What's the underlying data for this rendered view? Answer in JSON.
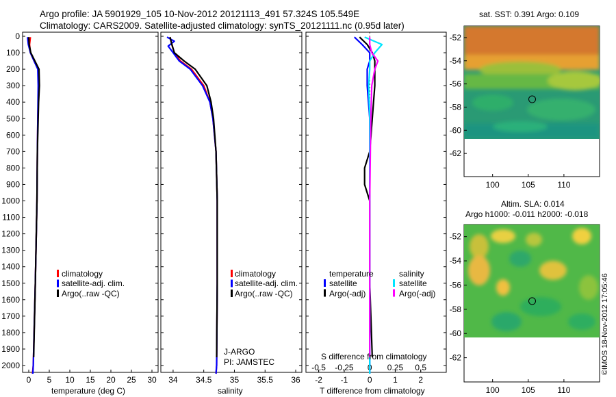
{
  "header": {
    "line1": "Argo profile: JA 5901929_105 10-Nov-2012 20121113_491 57.324S 105.549E",
    "line2": "Climatology: CARS2009. Satellite-adjusted climatology: synTS_20121111.nc (0.95d later)"
  },
  "colors": {
    "climatology": "#ff0000",
    "satellite": "#0000ff",
    "argo": "#000000",
    "satellite_diff": "#00e5ff",
    "argo_diff": "#ff00ff"
  },
  "chart_data": [
    {
      "type": "line",
      "xlabel": "temperature (deg C)",
      "ylabel": "",
      "xlim": [
        -1.5,
        31.5
      ],
      "ylim": [
        2080,
        0
      ],
      "xticks": [
        0,
        5,
        10,
        15,
        20,
        25,
        30
      ],
      "yticks": [
        0,
        100,
        200,
        300,
        400,
        500,
        600,
        700,
        800,
        900,
        1000,
        1100,
        1200,
        1300,
        1400,
        1500,
        1600,
        1700,
        1800,
        1900,
        2000
      ],
      "legend": [
        "climatology",
        "satellite-adj. clim.",
        "Argo(..raw -QC)"
      ],
      "series": [
        {
          "name": "climatology",
          "depth": [
            5,
            50,
            100,
            150,
            200,
            300,
            500,
            700,
            1000,
            1500,
            2000,
            2050
          ],
          "values": [
            0.4,
            0.2,
            0.4,
            1.3,
            2.3,
            2.4,
            2.2,
            2.1,
            2.0,
            1.6,
            1.1,
            0.9
          ]
        },
        {
          "name": "satellite-adj. clim.",
          "depth": [
            5,
            50,
            100,
            150,
            200,
            300,
            500,
            700,
            1000,
            1500,
            2000,
            2050
          ],
          "values": [
            -0.3,
            -0.1,
            0.4,
            1.3,
            2.2,
            2.3,
            2.2,
            2.1,
            2.0,
            1.6,
            1.1,
            1.0
          ]
        },
        {
          "name": "Argo(..raw -QC)",
          "depth": [
            5,
            50,
            100,
            150,
            200,
            300,
            400,
            500,
            700,
            1000,
            1500,
            1950
          ],
          "values": [
            0.0,
            0.1,
            0.5,
            1.5,
            2.5,
            2.6,
            2.4,
            2.3,
            2.1,
            2.0,
            1.6,
            1.2
          ]
        }
      ]
    },
    {
      "type": "line",
      "xlabel": "salinity",
      "ylabel": "",
      "xlim": [
        33.8,
        36.1
      ],
      "ylim": [
        2080,
        0
      ],
      "xticks": [
        34,
        34.5,
        35,
        35.5,
        36
      ],
      "legend": [
        "climatology",
        "satellite-adj. clim.",
        "Argo(..raw -QC)"
      ],
      "annotation": [
        "J-ARGO",
        "PI: JAMSTEC"
      ],
      "series": [
        {
          "name": "climatology",
          "depth": [
            5,
            50,
            100,
            150,
            200,
            300,
            400,
            500,
            700,
            1000,
            1500,
            2000,
            2050
          ],
          "values": [
            33.95,
            33.98,
            34.02,
            34.12,
            34.3,
            34.5,
            34.6,
            34.65,
            34.7,
            34.72,
            34.72,
            34.71,
            34.7
          ]
        },
        {
          "name": "satellite-adj. clim.",
          "depth": [
            5,
            30,
            60,
            100,
            150,
            200,
            300,
            400,
            500,
            700,
            1000,
            1500,
            2000,
            2050
          ],
          "values": [
            33.9,
            34.02,
            33.92,
            34.0,
            34.1,
            34.28,
            34.48,
            34.6,
            34.65,
            34.7,
            34.72,
            34.72,
            34.71,
            34.7
          ]
        },
        {
          "name": "Argo(..raw -QC)",
          "depth": [
            5,
            50,
            100,
            150,
            200,
            300,
            400,
            500,
            700,
            1000,
            1500,
            1950
          ],
          "values": [
            33.95,
            33.98,
            34.02,
            34.18,
            34.36,
            34.55,
            34.62,
            34.66,
            34.7,
            34.72,
            34.72,
            34.71
          ]
        }
      ]
    },
    {
      "type": "line",
      "xlabel": "T difference from climatology",
      "xlabel2": "S difference from climatology",
      "xlim": [
        -2.5,
        3.0
      ],
      "xlim2": [
        -0.625,
        0.75
      ],
      "ylim": [
        2080,
        0
      ],
      "xticks": [
        -2,
        -1,
        0,
        1,
        2
      ],
      "xticks2": [
        -0.5,
        -0.25,
        0,
        0.25,
        0.5
      ],
      "legend_temperature_title": "temperature",
      "legend_salinity_title": "salinity",
      "legend_temperature": [
        "satellite",
        "Argo(-adj)"
      ],
      "legend_salinity": [
        "satellite",
        "Argo(-adj)"
      ],
      "series": [
        {
          "name": "temperature satellite",
          "depth": [
            5,
            50,
            100,
            150,
            200,
            300,
            500,
            1000,
            1500,
            2000,
            2050
          ],
          "values": [
            -0.6,
            -0.3,
            0.0,
            0.0,
            -0.1,
            -0.1,
            0.0,
            0.0,
            0.0,
            0.0,
            0.0
          ]
        },
        {
          "name": "temperature Argo(-adj)",
          "depth": [
            5,
            50,
            100,
            150,
            200,
            300,
            500,
            700,
            800,
            900,
            1000,
            1500,
            1950
          ],
          "values": [
            -0.4,
            -0.1,
            0.1,
            0.2,
            0.2,
            0.2,
            0.1,
            0.0,
            -0.2,
            -0.2,
            0.0,
            0.0,
            0.1
          ]
        },
        {
          "name": "salinity satellite",
          "depth": [
            5,
            50,
            100,
            150,
            200,
            300,
            500,
            1000,
            1500,
            2000,
            2050
          ],
          "values": [
            -0.05,
            0.12,
            0.05,
            0.0,
            0.0,
            -0.01,
            0.0,
            0.0,
            0.0,
            0.0,
            0.0
          ]
        },
        {
          "name": "salinity Argo(-adj)",
          "depth": [
            5,
            50,
            100,
            150,
            200,
            300,
            500,
            1000,
            1500,
            1950
          ],
          "values": [
            0.0,
            0.0,
            0.02,
            0.08,
            0.05,
            0.02,
            0.01,
            0.0,
            0.0,
            0.0
          ]
        }
      ]
    },
    {
      "type": "heatmap",
      "title": "sat. SST: 0.391  Argo: 0.109",
      "xlim": [
        96,
        115
      ],
      "ylim": [
        -64,
        -51
      ],
      "xticks": [
        100,
        105,
        110
      ],
      "yticks": [
        -52,
        -54,
        -56,
        -58,
        -60,
        -62
      ],
      "marker": {
        "lon": 105.549,
        "lat": -57.324
      },
      "data_extent_lat": [
        -60,
        -51
      ]
    },
    {
      "type": "heatmap",
      "title": [
        "Altim. SLA: 0.014",
        "Argo h1000: -0.011 h2000: -0.018"
      ],
      "xlim": [
        96,
        115
      ],
      "ylim": [
        -64,
        -51
      ],
      "xticks": [
        100,
        105,
        110
      ],
      "yticks": [
        -52,
        -54,
        -56,
        -58,
        -60,
        -62
      ],
      "marker": {
        "lon": 105.549,
        "lat": -57.324
      },
      "data_extent_lat": [
        -60,
        -51
      ]
    }
  ],
  "footer": {
    "stamp": "©IMOS 18-Nov-2012 17:05:46"
  }
}
